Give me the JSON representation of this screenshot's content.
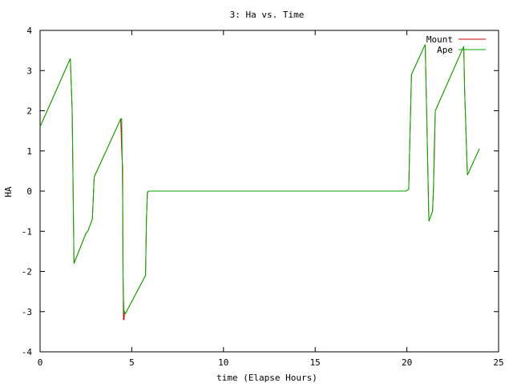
{
  "chart_data": {
    "type": "line",
    "title": "3: Ha vs. Time",
    "xlabel": "time (Elapse Hours)",
    "ylabel": "HA",
    "xlim": [
      0,
      25
    ],
    "ylim": [
      -4,
      4
    ],
    "xticks": [
      0,
      5,
      10,
      15,
      20,
      25
    ],
    "yticks": [
      -4,
      -3,
      -2,
      -1,
      0,
      1,
      2,
      3,
      4
    ],
    "grid": false,
    "legend_position": "top-right",
    "series": [
      {
        "name": "Mount",
        "color": "#cc0000",
        "x": [
          0,
          1.65,
          1.75,
          1.85,
          2.5,
          2.6,
          2.85,
          2.95,
          4.4,
          4.45,
          4.5,
          4.52,
          4.55,
          4.58,
          4.6,
          4.65,
          5.75,
          5.8,
          5.85,
          5.9,
          19.95,
          20.1,
          20.25,
          21.0,
          21.1,
          21.2,
          21.4,
          21.45,
          21.5,
          21.55,
          21.6,
          23.1,
          23.15,
          23.3,
          23.95
        ],
        "y": [
          1.6,
          3.3,
          2.0,
          -1.8,
          -1.05,
          -1.0,
          -0.7,
          0.35,
          1.8,
          1.0,
          0.6,
          -1.9,
          -3.2,
          -3.2,
          -3.0,
          -3.05,
          -2.1,
          -0.7,
          -0.05,
          0.0,
          0.0,
          0.05,
          2.9,
          3.65,
          1.5,
          -0.75,
          -0.5,
          0.05,
          0.95,
          2.0,
          2.05,
          3.6,
          2.5,
          0.4,
          1.05
        ]
      },
      {
        "name": "Ape",
        "color": "#00aa00",
        "x": [
          0,
          1.65,
          1.75,
          1.85,
          2.5,
          2.6,
          2.85,
          2.95,
          4.4,
          4.45,
          4.5,
          4.52,
          4.55,
          4.58,
          4.6,
          4.65,
          5.75,
          5.8,
          5.85,
          5.9,
          19.95,
          20.1,
          20.25,
          21.0,
          21.1,
          21.2,
          21.4,
          21.45,
          21.5,
          21.55,
          21.6,
          23.1,
          23.15,
          23.3,
          23.95
        ],
        "y": [
          1.6,
          3.3,
          2.0,
          -1.8,
          -1.05,
          -1.0,
          -0.7,
          0.35,
          1.8,
          1.8,
          -0.2,
          -2.0,
          -2.7,
          -3.05,
          -3.0,
          -3.05,
          -2.1,
          -0.7,
          -0.05,
          0.0,
          0.0,
          0.05,
          2.9,
          3.65,
          1.5,
          -0.75,
          -0.5,
          0.1,
          1.2,
          2.0,
          2.05,
          3.6,
          2.5,
          0.4,
          1.05
        ]
      }
    ]
  }
}
